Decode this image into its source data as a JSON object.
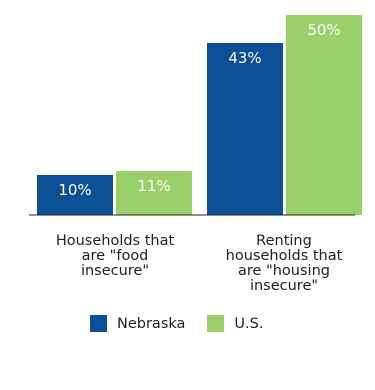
{
  "chart_data": {
    "type": "bar",
    "categories": [
      "Households that\nare \"food\ninsecure\"",
      "Renting\nhouseholds that\nare \"housing\ninsecure\""
    ],
    "series": [
      {
        "name": "Nebraska",
        "values": [
          10,
          43
        ],
        "labels": [
          "10%",
          "43%"
        ],
        "color": "#0b4f97"
      },
      {
        "name": "U.S.",
        "values": [
          11,
          50
        ],
        "labels": [
          "11%",
          "50%"
        ],
        "color": "#9ad06a"
      }
    ],
    "ylim": [
      0,
      50
    ],
    "grid": false,
    "legend": "bottom"
  }
}
